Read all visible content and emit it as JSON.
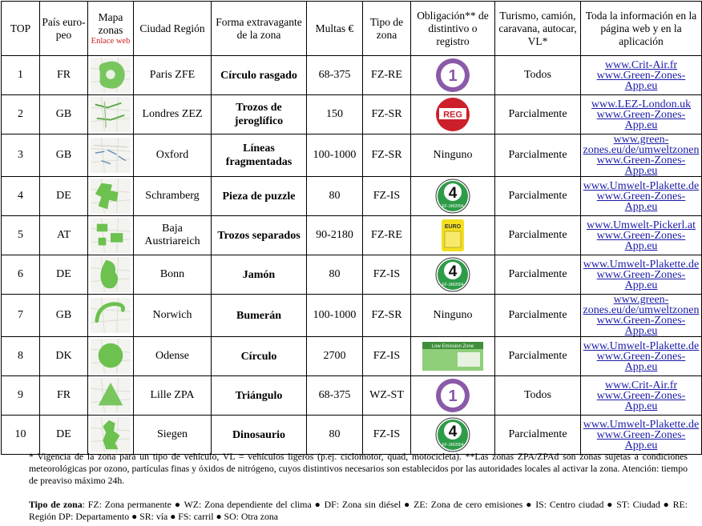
{
  "headers": {
    "top": "TOP",
    "country": "País euro-peo",
    "map": "Mapa zonas",
    "map_link": "Enlace web",
    "city": "Ciudad Región",
    "shape": "Forma extravagante de la zona",
    "fines": "Multas €",
    "zone_type": "Tipo de zona",
    "badge": "Obligación** de distintivo o registro",
    "vehicles": "Turismo, camión, caravana, autocar, VL*",
    "info": "Toda la información en la página web y en la aplicación"
  },
  "rows": [
    {
      "rank": "1",
      "country": "FR",
      "city": "Paris ZFE",
      "shape": "Círculo rasgado",
      "fines": "68-375",
      "type": "FZ-RE",
      "badge": "critair",
      "badge_text": "",
      "vehicles": "Todos",
      "web1": "www.Crit-Air.fr",
      "web2": "www.Green-Zones-App.eu"
    },
    {
      "rank": "2",
      "country": "GB",
      "city": "Londres ZEZ",
      "shape": "Trozos de jeroglífico",
      "fines": "150",
      "type": "FZ-SR",
      "badge": "reg",
      "badge_text": "",
      "vehicles": "Parcialmente",
      "web1": "www.LEZ-London.uk",
      "web2": "www.Green-Zones-App.eu"
    },
    {
      "rank": "3",
      "country": "GB",
      "city": "Oxford",
      "shape": "Líneas fragmentadas",
      "fines": "100-1000",
      "type": "FZ-SR",
      "badge": "text",
      "badge_text": "Ninguno",
      "vehicles": "Parcialmente",
      "web1": "www.green-zones.eu/de/umweltzonen",
      "web2": "www.Green-Zones-App.eu"
    },
    {
      "rank": "4",
      "country": "DE",
      "city": "Schramberg",
      "shape": "Pieza de puzzle",
      "fines": "80",
      "type": "FZ-IS",
      "badge": "plakette",
      "badge_text": "",
      "vehicles": "Parcialmente",
      "web1": "www.Umwelt-Plakette.de",
      "web2": "www.Green-Zones-App.eu"
    },
    {
      "rank": "5",
      "country": "AT",
      "city": "Baja Austriareich",
      "shape": "Trozos separados",
      "fines": "90-2180",
      "type": "FZ-RE",
      "badge": "pickerl",
      "badge_text": "",
      "vehicles": "Parcialmente",
      "web1": "www.Umwelt-Pickerl.at",
      "web2": "www.Green-Zones-App.eu"
    },
    {
      "rank": "6",
      "country": "DE",
      "city": "Bonn",
      "shape": "Jamón",
      "fines": "80",
      "type": "FZ-IS",
      "badge": "plakette",
      "badge_text": "",
      "vehicles": "Parcialmente",
      "web1": "www.Umwelt-Plakette.de",
      "web2": "www.Green-Zones-App.eu"
    },
    {
      "rank": "7",
      "country": "GB",
      "city": "Norwich",
      "shape": "Bumerán",
      "fines": "100-1000",
      "type": "FZ-SR",
      "badge": "text",
      "badge_text": "Ninguno",
      "vehicles": "Parcialmente",
      "web1": "www.green-zones.eu/de/umweltzonen",
      "web2": "www.Green-Zones-App.eu"
    },
    {
      "rank": "8",
      "country": "DK",
      "city": "Odense",
      "shape": "Círculo",
      "fines": "2700",
      "type": "FZ-IS",
      "badge": "dk",
      "badge_text": "",
      "vehicles": "Parcialmente",
      "web1": "www.Umwelt-Plakette.de",
      "web2": "www.Green-Zones-App.eu"
    },
    {
      "rank": "9",
      "country": "FR",
      "city": "Lille ZPA",
      "shape": "Triángulo",
      "fines": "68-375",
      "type": "WZ-ST",
      "badge": "critair",
      "badge_text": "",
      "vehicles": "Todos",
      "web1": "www.Crit-Air.fr",
      "web2": "www.Green-Zones-App.eu"
    },
    {
      "rank": "10",
      "country": "DE",
      "city": "Siegen",
      "shape": "Dinosaurio",
      "fines": "80",
      "type": "FZ-IS",
      "badge": "plakette",
      "badge_text": "",
      "vehicles": "Parcialmente",
      "web1": "www.Umwelt-Plakette.de",
      "web2": "www.Green-Zones-App.eu"
    }
  ],
  "badge_labels": {
    "critair_number": "1",
    "reg": "REG",
    "plakette_number": "4",
    "plakette_bottom": "EF·UM2004",
    "pickerl_top": "EURO",
    "dk_label": "Low Emission Zone"
  },
  "footnote": "* Vigencia de la zona para un tipo de vehículo, VL = vehículos ligeros (p.ej. ciclomotor, quad, motocicleta).  **Las zonas ZPA/ZPAd son zonas sujetas a condiciones meteorológicas por ozono, partículas finas y óxidos de nitrógeno, cuyos distintivos necesarios son establecidos por las autoridades locales al activar la zona. Atención: tiempo de preaviso máximo 24h.",
  "legend_title": "Tipo de zona",
  "legend_text": ": FZ: Zona permanente ● WZ: Zona dependiente del clima ● DF: Zona sin diésel ● ZE: Zona de cero emisiones ● IS: Centro ciudad ● ST: Ciudad ● RE: Región DP: Departamento ● SR: vía ● FS: carril ● SO: Otra zona",
  "colors": {
    "link": "#1a1aa8",
    "red": "#d02020",
    "zone_green": "#6cc14f",
    "critair_purple": "#8a5aa8",
    "plakette_green": "#2e9b48",
    "reg_red": "#cc1f2a",
    "pickerl_yellow": "#f3df1f"
  }
}
